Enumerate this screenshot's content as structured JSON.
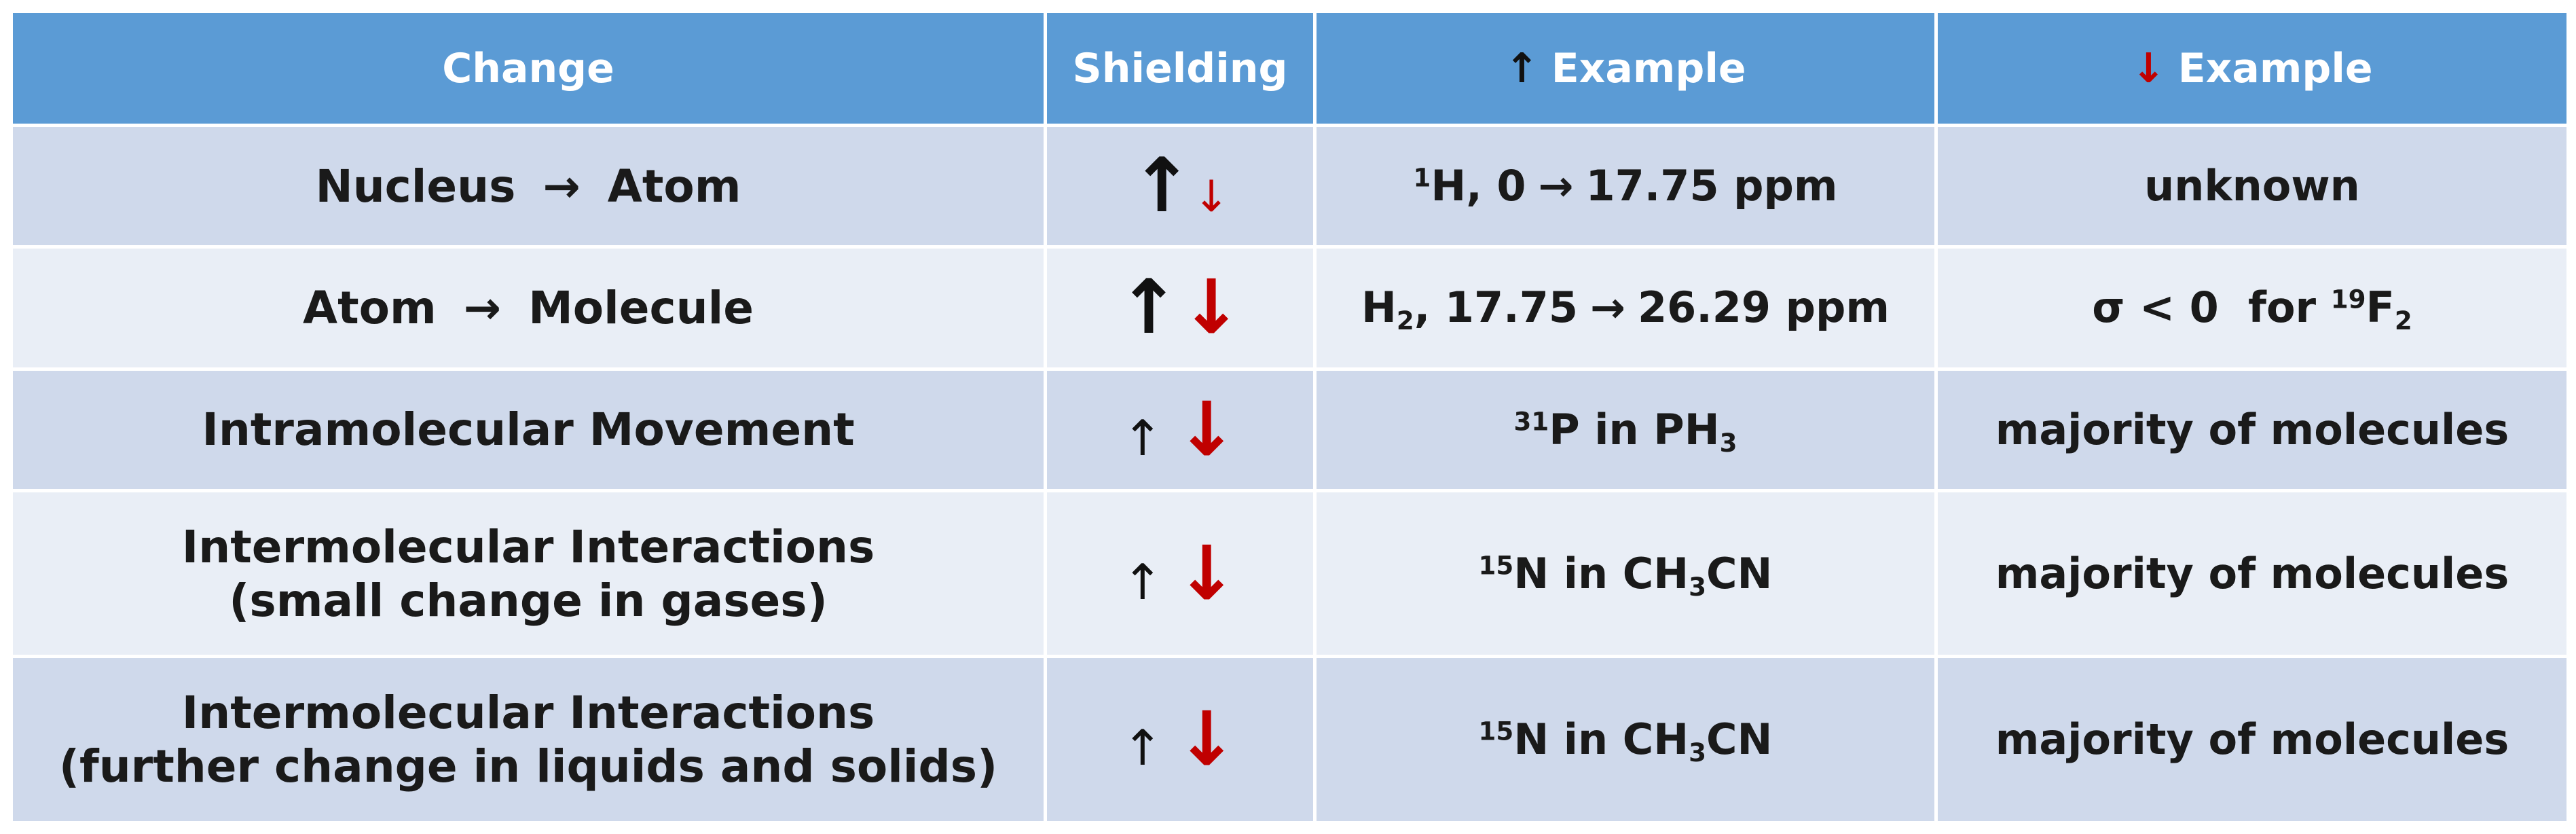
{
  "header": {
    "change": "Change",
    "shielding": "Shielding",
    "up_arrow": "↑",
    "up_example": "Example",
    "down_arrow": "↓",
    "down_example": "Example"
  },
  "rows": [
    {
      "change_from": "Nucleus",
      "change_arrow": "→",
      "change_to": "Atom",
      "shielding_up": "↑",
      "shielding_down": "↓",
      "shielding_up_weight": "large",
      "shielding_down_weight": "small",
      "up_example": {
        "sup": "1",
        "base": "H, 0",
        "arrow": "→",
        "value": "17.75 ppm"
      },
      "down_example": "unknown"
    },
    {
      "change_from": "Atom",
      "change_arrow": "→",
      "change_to": "Molecule",
      "shielding_up": "↑",
      "shielding_down": "↓",
      "shielding_up_weight": "large",
      "shielding_down_weight": "large",
      "up_example": {
        "base": "H",
        "sub": "2",
        "after": ", 17.75",
        "arrow": "→",
        "value": "26.29 ppm"
      },
      "down_example": {
        "pre": "σ < 0  for ",
        "sup": "19",
        "base": "F",
        "sub": "2"
      }
    },
    {
      "change": "Intramolecular Movement",
      "shielding_up": "↑",
      "shielding_down": "↓",
      "shielding_up_weight": "small",
      "shielding_down_weight": "large",
      "up_example": {
        "sup": "31",
        "base": "P in PH",
        "sub": "3"
      },
      "down_example": "majority of molecules"
    },
    {
      "change_line1": "Intermolecular Interactions",
      "change_line2": "(small change in gases)",
      "shielding_up": "↑",
      "shielding_down": "↓",
      "shielding_up_weight": "small",
      "shielding_down_weight": "large",
      "up_example": {
        "sup": "15",
        "base": "N in CH",
        "sub": "3",
        "after": "CN"
      },
      "down_example": "majority of molecules"
    },
    {
      "change_line1": "Intermolecular Interactions",
      "change_line2": "(further change in liquids and solids)",
      "shielding_up": "↑",
      "shielding_down": "↓",
      "shielding_up_weight": "small",
      "shielding_down_weight": "large",
      "up_example": {
        "sup": "15",
        "base": "N in CH",
        "sub": "3",
        "after": "CN"
      },
      "down_example": "majority of molecules"
    }
  ],
  "colors": {
    "header_bg": "#5b9bd5",
    "row_dark": "#cfd9eb",
    "row_light": "#e9eef6",
    "down_arrow": "#c00000",
    "up_arrow": "#111111"
  }
}
